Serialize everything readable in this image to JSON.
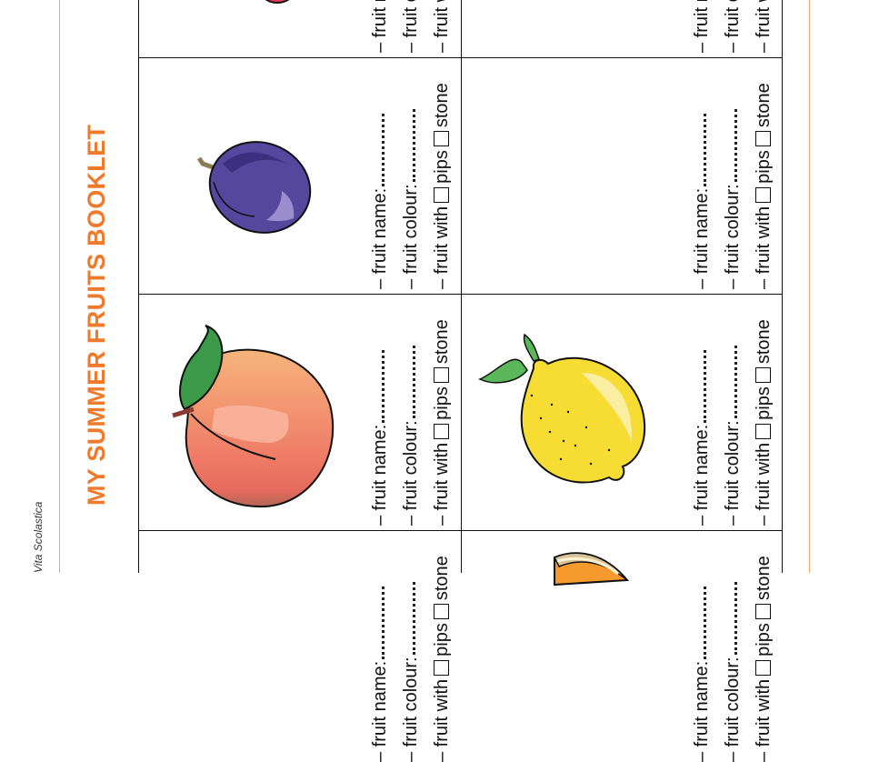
{
  "brand": "Vita Scolastica",
  "title": "MY SUMMER FRUITS BOOKLET",
  "labels": {
    "name": "– fruit name:",
    "colour": "– fruit colour:",
    "with": "– fruit with",
    "pips": "pips",
    "stone": "stone"
  },
  "colors": {
    "accent": "#f07a2c",
    "plum": "#55479e",
    "peach": "#f0826a",
    "lemon": "#f7dc34",
    "leaf": "#3a9a4a"
  },
  "cells": [
    {
      "row": 0,
      "col": 0,
      "icon": "red-fruit-icon"
    },
    {
      "row": 0,
      "col": 1,
      "icon": ""
    },
    {
      "row": 1,
      "col": 0,
      "icon": "plum-icon"
    },
    {
      "row": 1,
      "col": 1,
      "icon": ""
    },
    {
      "row": 2,
      "col": 0,
      "icon": "peach-icon"
    },
    {
      "row": 2,
      "col": 1,
      "icon": "lemon-icon"
    },
    {
      "row": 3,
      "col": 0,
      "icon": ""
    },
    {
      "row": 3,
      "col": 1,
      "icon": "melon-slice-icon"
    }
  ]
}
